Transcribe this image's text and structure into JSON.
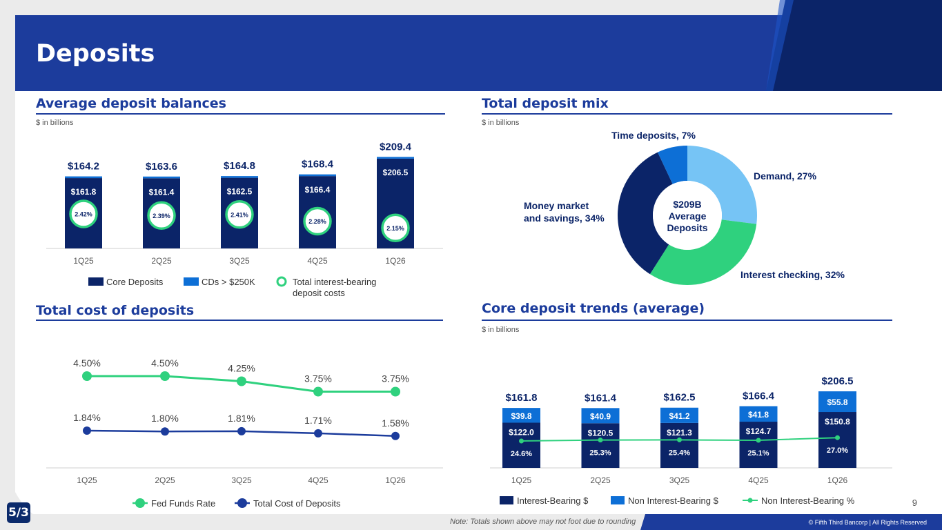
{
  "page": {
    "title": "Deposits",
    "page_number": "9",
    "note": "Note: Totals shown above may not foot due to rounding",
    "copyright": "© Fifth Third Bancorp | All Rights Reserved",
    "logo_text": "5/3"
  },
  "colors": {
    "navy": "#0b2468",
    "blue": "#0d6fd6",
    "light_blue": "#76c4f5",
    "green": "#2fd17e",
    "title_blue": "#1c3c9c"
  },
  "sections": {
    "avg": {
      "title": "Average deposit balances",
      "units": "$ in billions"
    },
    "mix": {
      "title": "Total deposit mix",
      "units": "$ in billions"
    },
    "cost": {
      "title": "Total cost of deposits"
    },
    "core": {
      "title": "Core deposit trends (average)",
      "units": "$ in billions"
    }
  },
  "chart_data": [
    {
      "type": "bar",
      "title": "Average deposit balances",
      "categories": [
        "1Q25",
        "2Q25",
        "3Q25",
        "4Q25",
        "1Q26"
      ],
      "totals": [
        "$164.2",
        "$163.6",
        "$164.8",
        "$168.4",
        "$209.4"
      ],
      "total_values": [
        164.2,
        163.6,
        164.8,
        168.4,
        209.4
      ],
      "series": [
        {
          "name": "Core Deposits",
          "values": [
            161.8,
            161.4,
            162.5,
            166.4,
            206.5
          ],
          "labels": [
            "$161.8",
            "$161.4",
            "$162.5",
            "$166.4",
            "$206.5"
          ]
        },
        {
          "name": "CDs > $250K",
          "values": [
            2.4,
            2.2,
            2.3,
            2.0,
            2.9
          ]
        },
        {
          "name": "Total interest-bearing deposit costs",
          "values": [
            2.42,
            2.39,
            2.41,
            2.28,
            2.15
          ],
          "labels": [
            "2.42%",
            "2.39%",
            "2.41%",
            "2.28%",
            "2.15%"
          ]
        }
      ],
      "legend": [
        "Core Deposits",
        "CDs > $250K",
        "Total interest-bearing deposit costs"
      ]
    },
    {
      "type": "pie",
      "title": "Total deposit mix",
      "center_label": [
        "$209B",
        "Average",
        "Deposits"
      ],
      "slices": [
        {
          "label": "Demand, 27%",
          "value": 27
        },
        {
          "label": "Interest checking, 32%",
          "value": 32
        },
        {
          "label": "Money market and savings, 34%",
          "label_lines": [
            "Money market",
            "and savings, 34%"
          ],
          "value": 34
        },
        {
          "label": "Time deposits, 7%",
          "value": 7
        }
      ]
    },
    {
      "type": "line",
      "title": "Total cost of deposits",
      "categories": [
        "1Q25",
        "2Q25",
        "3Q25",
        "4Q25",
        "1Q26"
      ],
      "series": [
        {
          "name": "Fed Funds Rate",
          "values": [
            4.5,
            4.5,
            4.25,
            3.75,
            3.75
          ],
          "labels": [
            "4.50%",
            "4.50%",
            "4.25%",
            "3.75%",
            "3.75%"
          ]
        },
        {
          "name": "Total Cost of Deposits",
          "values": [
            1.84,
            1.8,
            1.81,
            1.71,
            1.58
          ],
          "labels": [
            "1.84%",
            "1.80%",
            "1.81%",
            "1.71%",
            "1.58%"
          ]
        }
      ],
      "legend": [
        "Fed Funds Rate",
        "Total Cost of Deposits"
      ]
    },
    {
      "type": "bar",
      "title": "Core deposit trends (average)",
      "categories": [
        "1Q25",
        "2Q25",
        "3Q25",
        "4Q25",
        "1Q26"
      ],
      "totals": [
        "$161.8",
        "$161.4",
        "$162.5",
        "$166.4",
        "$206.5"
      ],
      "series": [
        {
          "name": "Interest-Bearing $",
          "values": [
            122.0,
            120.5,
            121.3,
            124.7,
            150.8
          ],
          "labels": [
            "$122.0",
            "$120.5",
            "$121.3",
            "$124.7",
            "$150.8"
          ]
        },
        {
          "name": "Non Interest-Bearing $",
          "values": [
            39.8,
            40.9,
            41.2,
            41.8,
            55.8
          ],
          "labels": [
            "$39.8",
            "$40.9",
            "$41.2",
            "$41.8",
            "$55.8"
          ]
        },
        {
          "name": "Non Interest-Bearing %",
          "values": [
            24.6,
            25.3,
            25.4,
            25.1,
            27.0
          ],
          "labels": [
            "24.6%",
            "25.3%",
            "25.4%",
            "25.1%",
            "27.0%"
          ]
        }
      ],
      "legend": [
        "Interest-Bearing $",
        "Non Interest-Bearing $",
        "Non Interest-Bearing %"
      ]
    }
  ]
}
